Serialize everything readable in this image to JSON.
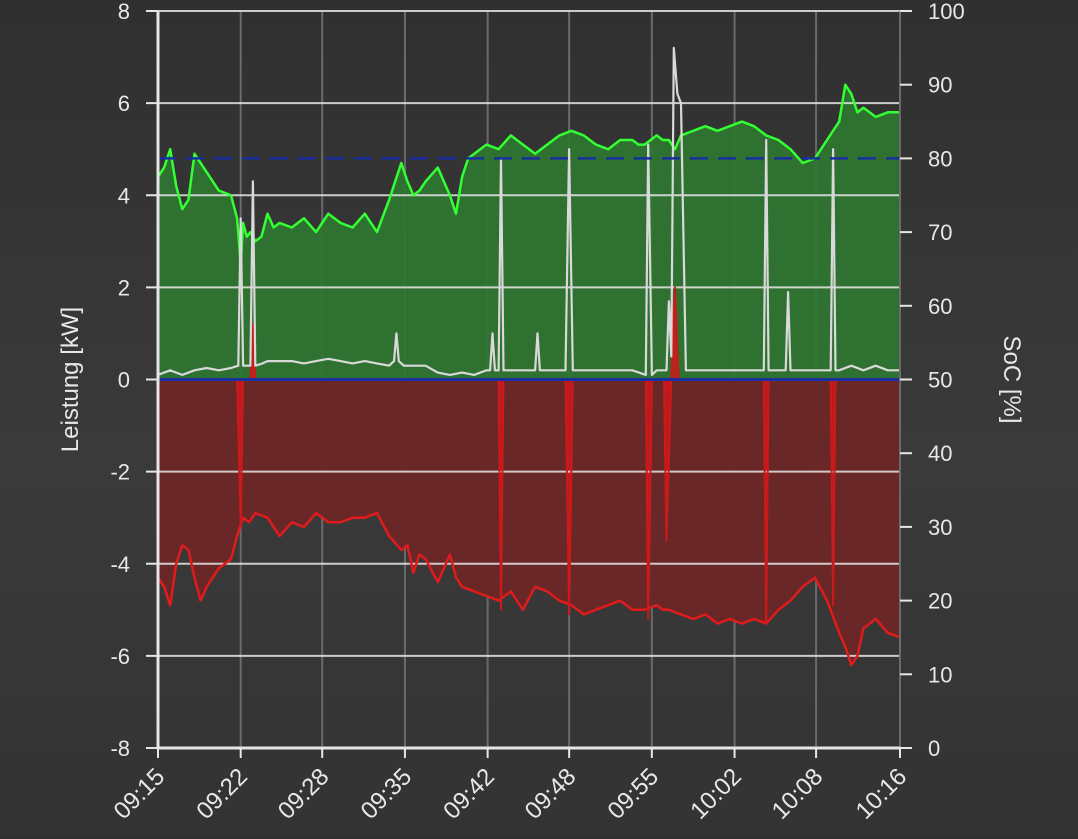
{
  "chart_data": {
    "type": "area",
    "title": "",
    "xlabel": "",
    "ylabel": "Leistung [kW]",
    "y2label": "SoC [%]",
    "ylim": [
      -8,
      8
    ],
    "y2lim": [
      0,
      100
    ],
    "yticks": [
      8,
      6,
      4,
      2,
      0,
      -2,
      -4,
      -6,
      -8
    ],
    "y2ticks": [
      100,
      90,
      80,
      70,
      60,
      50,
      40,
      30,
      20,
      10,
      0
    ],
    "xlim": [
      0,
      61
    ],
    "xtick_labels": [
      "09:15",
      "09:22",
      "09:28",
      "09:35",
      "09:42",
      "09:48",
      "09:55",
      "10:02",
      "10:08",
      "10:16"
    ],
    "xtick_minutes": [
      0,
      6.8,
      13.5,
      20.3,
      27.1,
      33.8,
      40.6,
      47.4,
      54.1,
      61
    ],
    "grid": true,
    "legend": "none",
    "colors": {
      "production": "#33ff33",
      "production_fill": "#2e7631",
      "consumption": "#e01b1b",
      "consumption_fill": "#6b2626",
      "soc": "#d9d9d9",
      "battery": "#cc1a1a",
      "reference": "#1a2fa0",
      "axis": "#e6e6e6",
      "grid_major": "#e6e6e6",
      "grid_vertical": "#6a6a6a"
    },
    "reference_line": {
      "axis": "y2",
      "value": 80,
      "style": "dashed"
    },
    "series": [
      {
        "key": "production",
        "axis": "y",
        "x": [
          0,
          0.5,
          1,
          1.5,
          2,
          2.5,
          3,
          3.5,
          4,
          5,
          6,
          6.5,
          6.8,
          7,
          7.3,
          7.6,
          8,
          8.5,
          9,
          9.5,
          10,
          11,
          12,
          13,
          14,
          15,
          16,
          17,
          18,
          19,
          20,
          20.5,
          21,
          21.5,
          22,
          23,
          24,
          24.5,
          25,
          25.5,
          26,
          26.5,
          27,
          28,
          29,
          30,
          31,
          32,
          33,
          34,
          35,
          36,
          37,
          38,
          39,
          39.5,
          40,
          41,
          41.5,
          42,
          42.5,
          43,
          44,
          45,
          46,
          47,
          48,
          49,
          50,
          51,
          52,
          53,
          54,
          55,
          56,
          56.5,
          57,
          57.5,
          58,
          59,
          60,
          61
        ],
        "values": [
          4.4,
          4.6,
          5.0,
          4.2,
          3.7,
          3.9,
          4.9,
          4.7,
          4.5,
          4.1,
          4.0,
          3.5,
          2.5,
          3.4,
          3.1,
          3.2,
          3.0,
          3.1,
          3.6,
          3.3,
          3.4,
          3.3,
          3.5,
          3.2,
          3.6,
          3.4,
          3.3,
          3.6,
          3.2,
          3.9,
          4.7,
          4.3,
          4.0,
          4.1,
          4.3,
          4.6,
          4.0,
          3.6,
          4.4,
          4.8,
          4.9,
          5.0,
          5.1,
          5.0,
          5.3,
          5.1,
          4.9,
          5.1,
          5.3,
          5.4,
          5.3,
          5.1,
          5.0,
          5.2,
          5.2,
          5.1,
          5.1,
          5.3,
          5.2,
          5.2,
          5.0,
          5.3,
          5.4,
          5.5,
          5.4,
          5.5,
          5.6,
          5.5,
          5.3,
          5.2,
          5.0,
          4.7,
          4.8,
          5.2,
          5.6,
          6.4,
          6.2,
          5.8,
          5.9,
          5.7,
          5.8,
          5.8
        ]
      },
      {
        "key": "consumption",
        "axis": "y",
        "x": [
          0,
          0.5,
          1,
          1.5,
          2,
          2.5,
          3,
          3.5,
          4,
          5,
          6,
          6.5,
          7,
          7.5,
          8,
          9,
          10,
          11,
          12,
          13,
          14,
          15,
          16,
          17,
          18,
          19,
          20,
          20.5,
          21,
          21.5,
          22,
          23,
          24,
          24.5,
          25,
          26,
          27,
          28,
          29,
          30,
          31,
          32,
          33,
          34,
          35,
          36,
          37,
          38,
          39,
          40,
          41,
          41.5,
          42,
          43,
          44,
          45,
          46,
          47,
          48,
          49,
          50,
          51,
          52,
          53,
          54,
          55,
          56,
          56.5,
          57,
          57.5,
          58,
          59,
          60,
          61
        ],
        "values": [
          -4.3,
          -4.5,
          -4.9,
          -4.0,
          -3.6,
          -3.7,
          -4.3,
          -4.8,
          -4.5,
          -4.1,
          -3.9,
          -3.4,
          -3.0,
          -3.1,
          -2.9,
          -3.0,
          -3.4,
          -3.1,
          -3.2,
          -2.9,
          -3.1,
          -3.1,
          -3.0,
          -3.0,
          -2.9,
          -3.4,
          -3.7,
          -3.6,
          -4.2,
          -3.8,
          -3.9,
          -4.4,
          -3.8,
          -4.3,
          -4.5,
          -4.6,
          -4.7,
          -4.8,
          -4.6,
          -5.0,
          -4.5,
          -4.6,
          -4.8,
          -4.9,
          -5.1,
          -5.0,
          -4.9,
          -4.8,
          -5.0,
          -5.0,
          -4.9,
          -5.0,
          -5.0,
          -5.1,
          -5.2,
          -5.1,
          -5.3,
          -5.2,
          -5.3,
          -5.2,
          -5.3,
          -5.0,
          -4.8,
          -4.5,
          -4.3,
          -4.8,
          -5.5,
          -5.8,
          -6.2,
          -6.0,
          -5.4,
          -5.2,
          -5.5,
          -5.6
        ]
      },
      {
        "key": "soc",
        "axis": "y",
        "x": [
          0,
          1,
          2,
          3,
          4,
          5,
          6,
          6.6,
          6.8,
          7.0,
          7.6,
          7.8,
          8.0,
          8.6,
          9,
          10,
          11,
          12,
          13,
          14,
          15,
          16,
          17,
          18,
          19,
          19.4,
          19.6,
          19.8,
          20.2,
          22,
          23,
          24,
          25,
          26,
          27,
          27.3,
          27.5,
          27.7,
          28,
          28.2,
          28.4,
          28.6,
          29,
          30,
          31,
          31.2,
          31.4,
          32,
          33,
          33.5,
          33.8,
          34.1,
          35,
          36,
          37,
          38,
          39,
          40.1,
          40.3,
          40.6,
          41,
          41.8,
          42.0,
          42.2,
          42.4,
          42.7,
          43.0,
          43.4,
          44,
          45,
          46,
          47,
          48,
          49,
          49.8,
          50.0,
          50.2,
          51,
          51.6,
          51.8,
          52,
          53,
          54,
          55,
          55.3,
          55.5,
          55.7,
          56,
          57,
          58,
          59,
          60,
          61
        ],
        "values": [
          0.1,
          0.2,
          0.1,
          0.2,
          0.25,
          0.2,
          0.25,
          0.3,
          3.5,
          0.3,
          0.3,
          4.3,
          0.3,
          0.35,
          0.4,
          0.4,
          0.4,
          0.35,
          0.4,
          0.45,
          0.4,
          0.35,
          0.4,
          0.35,
          0.3,
          0.4,
          1.0,
          0.4,
          0.3,
          0.3,
          0.15,
          0.1,
          0.15,
          0.1,
          0.2,
          0.2,
          1.0,
          0.2,
          0.2,
          4.8,
          0.2,
          0.2,
          0.2,
          0.2,
          0.2,
          1.0,
          0.2,
          0.2,
          0.2,
          0.2,
          5.0,
          0.2,
          0.2,
          0.2,
          0.2,
          0.2,
          0.2,
          0.1,
          5.1,
          0.1,
          0.2,
          0.2,
          1.7,
          0.5,
          7.2,
          6.2,
          6.0,
          0.2,
          0.2,
          0.2,
          0.2,
          0.2,
          0.2,
          0.2,
          0.2,
          5.2,
          0.2,
          0.2,
          0.2,
          1.9,
          0.2,
          0.2,
          0.2,
          0.2,
          0.2,
          5.0,
          0.2,
          0.2,
          0.3,
          0.2,
          0.3,
          0.2,
          0.2
        ]
      },
      {
        "key": "battery",
        "axis": "y",
        "x": [
          0,
          6.5,
          6.8,
          7.0,
          7.6,
          7.8,
          8.0,
          28.0,
          28.2,
          28.4,
          33.5,
          33.8,
          34.1,
          40.1,
          40.3,
          40.6,
          41.6,
          41.8,
          42.2,
          42.5,
          42.8,
          49.8,
          50.0,
          50.2,
          55.3,
          55.5,
          55.7,
          61
        ],
        "values": [
          0,
          0,
          -3.2,
          0,
          0,
          1.2,
          0,
          0,
          -5.0,
          0,
          0,
          -5.1,
          0,
          0,
          -5.2,
          0,
          0,
          -3.5,
          0,
          2.0,
          0,
          0,
          -5.3,
          0,
          0,
          -4.9,
          0,
          0
        ]
      }
    ]
  }
}
